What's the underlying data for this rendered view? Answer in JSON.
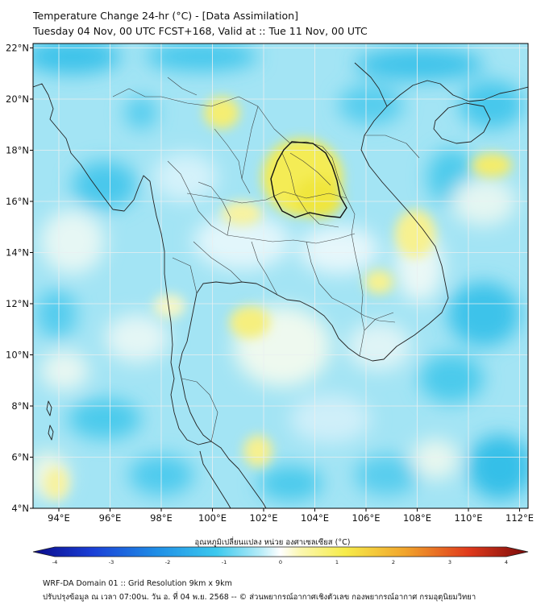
{
  "title_line1": "Temperature Change 24-hr (°C) - [Data Assimilation]",
  "title_line2": "Tuesday 04 Nov, 00 UTC FCST+168, Valid at :: Tue 11 Nov, 00 UTC",
  "lat_labels": [
    "22°N",
    "20°N",
    "18°N",
    "16°N",
    "14°N",
    "12°N",
    "10°N",
    "8°N",
    "6°N",
    "4°N"
  ],
  "lon_labels": [
    "94°E",
    "96°E",
    "98°E",
    "100°E",
    "102°E",
    "104°E",
    "106°E",
    "108°E",
    "110°E",
    "112°E"
  ],
  "colorbar": {
    "title": "อุณหภูมิเปลี่ยนแปลง หน่วย องศาเซลเซียส (°C)",
    "ticks": [
      "-4",
      "-3",
      "-2",
      "-1",
      "0",
      "1",
      "2",
      "3",
      "4"
    ]
  },
  "footer_line1": "WRF-DA Domain 01 :: Grid Resolution 9km x 9km",
  "footer_line2": "ปรับปรุงข้อมูล ณ เวลา 07:00น. วัน อ. ที่ 04 พ.ย. 2568 -- © ส่วนพยากรณ์อากาศเชิงตัวเลข กองพยากรณ์อากาศ กรมอุตุนิยมวิทยา",
  "colors": {
    "field_base": "#9fe3f3",
    "cyan_strong": "#38c2ea",
    "cyan_light": "#c4eefa",
    "yellow": "#f7f06a",
    "yellow_light": "#fbf8b8",
    "coast": "#222222",
    "grid": "#e8eef0"
  }
}
